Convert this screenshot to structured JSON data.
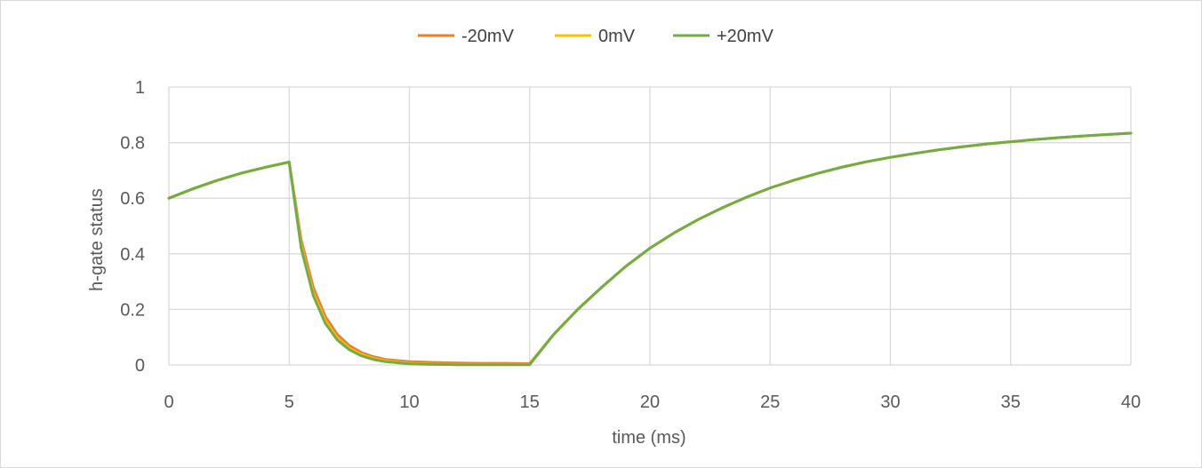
{
  "chart_data": {
    "type": "line",
    "title": "",
    "xlabel": "time (ms)",
    "ylabel": "h-gate status",
    "xlim": [
      0,
      40
    ],
    "ylim": [
      0,
      1
    ],
    "x_ticks": [
      0,
      5,
      10,
      15,
      20,
      25,
      30,
      35,
      40
    ],
    "y_ticks": [
      0,
      0.2,
      0.4,
      0.6,
      0.8,
      1
    ],
    "grid": true,
    "legend_position": "top",
    "series": [
      {
        "name": "-20mV",
        "color": "#ED7D31",
        "x": [
          0,
          1,
          2,
          3,
          4,
          5,
          5.5,
          6,
          6.5,
          7,
          7.5,
          8,
          8.5,
          9,
          10,
          11,
          12,
          13,
          14,
          15,
          16,
          17,
          18,
          19,
          20,
          21,
          22,
          23,
          24,
          25,
          26,
          27,
          28,
          29,
          30,
          31,
          32,
          33,
          34,
          35,
          36,
          37,
          38,
          39,
          40
        ],
        "y": [
          0.6,
          0.634,
          0.664,
          0.69,
          0.711,
          0.73,
          0.45,
          0.28,
          0.175,
          0.11,
          0.07,
          0.045,
          0.03,
          0.02,
          0.012,
          0.009,
          0.007,
          0.006,
          0.006,
          0.005,
          0.11,
          0.2,
          0.28,
          0.355,
          0.42,
          0.475,
          0.523,
          0.565,
          0.603,
          0.637,
          0.665,
          0.69,
          0.712,
          0.731,
          0.747,
          0.761,
          0.774,
          0.785,
          0.795,
          0.803,
          0.811,
          0.818,
          0.824,
          0.829,
          0.834
        ]
      },
      {
        "name": "0mV",
        "color": "#FFC000",
        "x": [
          0,
          1,
          2,
          3,
          4,
          5,
          5.5,
          6,
          6.5,
          7,
          7.5,
          8,
          8.5,
          9,
          10,
          11,
          12,
          13,
          14,
          15,
          16,
          17,
          18,
          19,
          20,
          21,
          22,
          23,
          24,
          25,
          26,
          27,
          28,
          29,
          30,
          31,
          32,
          33,
          34,
          35,
          36,
          37,
          38,
          39,
          40
        ],
        "y": [
          0.6,
          0.634,
          0.664,
          0.69,
          0.711,
          0.73,
          0.43,
          0.26,
          0.16,
          0.098,
          0.061,
          0.038,
          0.024,
          0.015,
          0.006,
          0.003,
          0.002,
          0.002,
          0.002,
          0.002,
          0.11,
          0.2,
          0.28,
          0.355,
          0.42,
          0.475,
          0.523,
          0.565,
          0.603,
          0.637,
          0.665,
          0.69,
          0.712,
          0.731,
          0.747,
          0.761,
          0.774,
          0.785,
          0.795,
          0.803,
          0.811,
          0.818,
          0.824,
          0.829,
          0.834
        ]
      },
      {
        "name": "+20mV",
        "color": "#70AD47",
        "x": [
          0,
          1,
          2,
          3,
          4,
          5,
          5.5,
          6,
          6.5,
          7,
          7.5,
          8,
          8.5,
          9,
          10,
          11,
          12,
          13,
          14,
          15,
          16,
          17,
          18,
          19,
          20,
          21,
          22,
          23,
          24,
          25,
          26,
          27,
          28,
          29,
          30,
          31,
          32,
          33,
          34,
          35,
          36,
          37,
          38,
          39,
          40
        ],
        "y": [
          0.6,
          0.634,
          0.664,
          0.69,
          0.711,
          0.73,
          0.42,
          0.25,
          0.15,
          0.09,
          0.055,
          0.033,
          0.02,
          0.012,
          0.004,
          0.002,
          0.001,
          0.001,
          0.001,
          0.001,
          0.11,
          0.2,
          0.28,
          0.355,
          0.42,
          0.475,
          0.523,
          0.565,
          0.603,
          0.637,
          0.665,
          0.69,
          0.712,
          0.731,
          0.747,
          0.761,
          0.774,
          0.785,
          0.795,
          0.803,
          0.811,
          0.818,
          0.824,
          0.829,
          0.834
        ]
      }
    ]
  }
}
